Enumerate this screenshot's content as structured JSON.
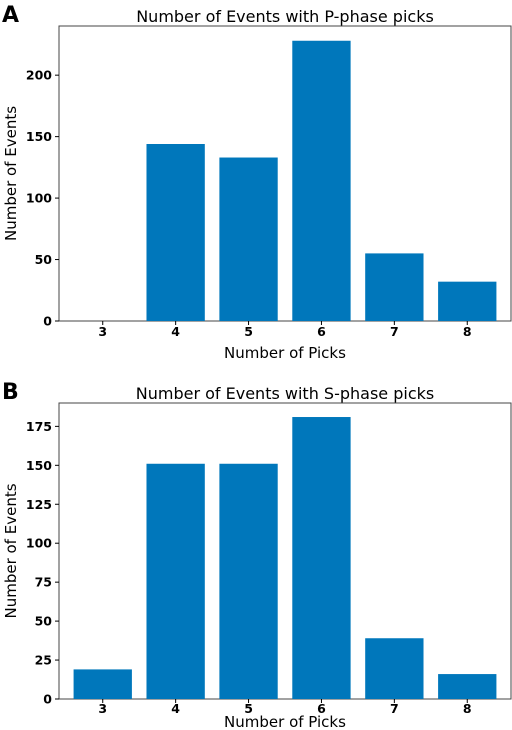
{
  "chart_data": [
    {
      "panel": "A",
      "type": "bar",
      "title": "Number of Events with P-phase picks",
      "xlabel": "Number of Picks",
      "ylabel": "Number of Events",
      "categories": [
        "3",
        "4",
        "5",
        "6",
        "7",
        "8"
      ],
      "values": [
        0,
        144,
        133,
        228,
        55,
        32
      ],
      "ylim": [
        0,
        240
      ],
      "yticks": [
        0,
        50,
        100,
        150,
        200
      ],
      "bar_color": "#0077bb",
      "grid": false
    },
    {
      "panel": "B",
      "type": "bar",
      "title": "Number of Events with S-phase picks",
      "xlabel": "Number of Picks",
      "ylabel": "Number of Events",
      "categories": [
        "3",
        "4",
        "5",
        "6",
        "7",
        "8"
      ],
      "values": [
        19,
        151,
        151,
        181,
        39,
        16
      ],
      "ylim": [
        0,
        190
      ],
      "yticks": [
        0,
        25,
        50,
        75,
        100,
        125,
        150,
        175
      ],
      "bar_color": "#0077bb",
      "grid": false
    }
  ]
}
